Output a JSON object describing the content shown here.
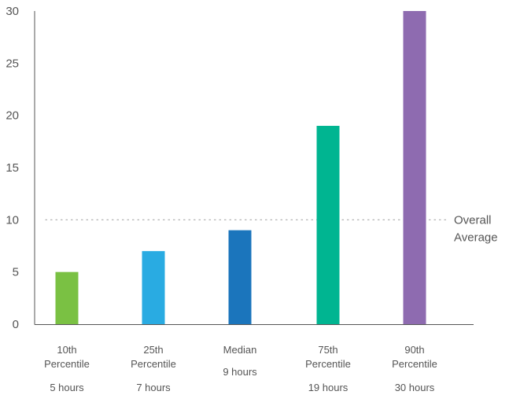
{
  "chart_data": {
    "type": "bar",
    "title": "",
    "xlabel": "",
    "ylabel": "",
    "ylim": [
      0,
      30
    ],
    "yticks": [
      0,
      5,
      10,
      15,
      20,
      25,
      30
    ],
    "grid": false,
    "categories": [
      {
        "label_top": "10th",
        "label_mid": "Percentile",
        "label_bottom": "5 hours"
      },
      {
        "label_top": "25th",
        "label_mid": "Percentile",
        "label_bottom": "7 hours"
      },
      {
        "label_top": "Median",
        "label_mid": "",
        "label_bottom": "9 hours"
      },
      {
        "label_top": "75th",
        "label_mid": "Percentile",
        "label_bottom": "19 hours"
      },
      {
        "label_top": "90th",
        "label_mid": "Percentile",
        "label_bottom": "30 hours"
      }
    ],
    "values": [
      5,
      7,
      9,
      19,
      30
    ],
    "colors": [
      "#7ac143",
      "#29abe2",
      "#1b75bc",
      "#00b591",
      "#8e6bb0"
    ],
    "reference_line": {
      "value": 10,
      "label_line1": "Overall",
      "label_line2": "Average",
      "color": "#aaaaaa"
    },
    "axis_color": "#555555"
  }
}
